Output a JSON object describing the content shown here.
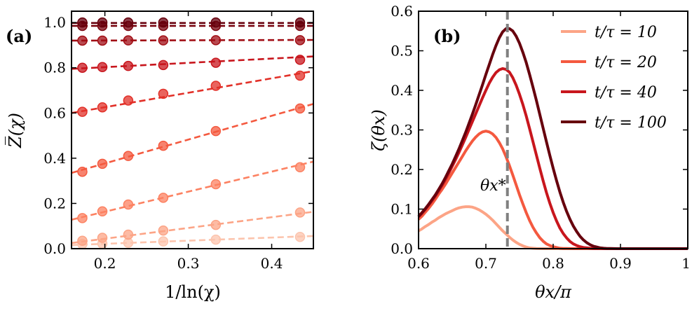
{
  "chart_data": [
    {
      "type": "scatter",
      "panel_label": "(a)",
      "xlabel": "1/ln(χ)",
      "ylabel": "Z̅(χ)",
      "xlim": [
        0.16,
        0.45
      ],
      "ylim": [
        0.0,
        1.05
      ],
      "xticks": [
        0.2,
        0.3,
        0.4
      ],
      "xtick_labels": [
        "0.2",
        "0.3",
        "0.4"
      ],
      "yticks": [
        0.0,
        0.2,
        0.4,
        0.6,
        0.8,
        1.0
      ],
      "ytick_labels": [
        "0.0",
        "0.2",
        "0.4",
        "0.6",
        "0.8",
        "1.0"
      ],
      "x": [
        0.173,
        0.197,
        0.228,
        0.27,
        0.333,
        0.434
      ],
      "series": [
        {
          "color": "#fcc4ad",
          "values": [
            0.02,
            0.022,
            0.026,
            0.032,
            0.04,
            0.052
          ],
          "fit": [
            0.016,
            0.056
          ]
        },
        {
          "color": "#fca486",
          "values": [
            0.035,
            0.048,
            0.062,
            0.08,
            0.105,
            0.16
          ],
          "fit": [
            0.025,
            0.163
          ]
        },
        {
          "color": "#fc8161",
          "values": [
            0.135,
            0.165,
            0.195,
            0.225,
            0.285,
            0.36
          ],
          "fit": [
            0.128,
            0.385
          ]
        },
        {
          "color": "#f4593f",
          "values": [
            0.34,
            0.375,
            0.41,
            0.455,
            0.52,
            0.62
          ],
          "fit": [
            0.335,
            0.64
          ]
        },
        {
          "color": "#e23028",
          "values": [
            0.605,
            0.625,
            0.655,
            0.685,
            0.72,
            0.765
          ],
          "fit": [
            0.6,
            0.785
          ]
        },
        {
          "color": "#c8161d",
          "values": [
            0.8,
            0.803,
            0.808,
            0.812,
            0.822,
            0.835
          ],
          "fit": [
            0.795,
            0.85
          ]
        },
        {
          "color": "#a10e15",
          "values": [
            0.92,
            0.92,
            0.921,
            0.921,
            0.922,
            0.922
          ],
          "fit": [
            0.92,
            0.923
          ]
        },
        {
          "color": "#79040f",
          "values": [
            0.985,
            0.985,
            0.985,
            0.985,
            0.985,
            0.985
          ],
          "fit": [
            0.985,
            0.985
          ]
        },
        {
          "color": "#67000d",
          "values": [
            1.0,
            1.0,
            1.0,
            1.0,
            1.0,
            1.0
          ],
          "fit": [
            0.998,
            0.998
          ]
        }
      ]
    },
    {
      "type": "line",
      "panel_label": "(b)",
      "xlabel": "θx/π",
      "ylabel": "ζ(θx)",
      "xlim": [
        0.6,
        1.0
      ],
      "ylim": [
        0.0,
        0.6
      ],
      "xticks": [
        0.6,
        0.7,
        0.8,
        0.9,
        1.0
      ],
      "xtick_labels": [
        "0.6",
        "0.7",
        "0.8",
        "0.9",
        "1"
      ],
      "yticks": [
        0.0,
        0.1,
        0.2,
        0.3,
        0.4,
        0.5,
        0.6
      ],
      "ytick_labels": [
        "0.0",
        "0.1",
        "0.2",
        "0.3",
        "0.4",
        "0.5",
        "0.6"
      ],
      "vline": 0.732,
      "annotation": "θx*",
      "x": [
        0.6,
        0.605,
        0.61,
        0.615,
        0.62,
        0.625,
        0.63,
        0.635,
        0.64,
        0.645,
        0.65,
        0.655,
        0.66,
        0.665,
        0.67,
        0.675,
        0.68,
        0.685,
        0.69,
        0.695,
        0.7,
        0.705,
        0.71,
        0.715,
        0.72,
        0.725,
        0.73,
        0.735,
        0.74,
        0.745,
        0.75,
        0.755,
        0.76,
        0.765,
        0.77,
        0.775,
        0.78,
        0.785,
        0.79,
        0.795,
        0.8,
        0.805,
        0.81,
        0.815,
        0.82,
        0.825,
        0.83,
        0.835,
        0.84,
        0.845,
        0.85,
        0.855,
        0.86,
        0.865,
        0.87,
        0.875,
        0.88,
        0.885,
        0.89,
        0.895,
        0.9,
        0.905,
        0.91,
        0.915,
        0.92,
        0.925,
        0.93,
        0.935,
        0.94,
        0.945,
        0.95,
        0.955,
        0.96,
        0.965,
        0.97,
        0.975,
        0.98,
        0.985,
        0.99,
        0.995,
        1.0
      ],
      "series": [
        {
          "name": "t/τ = 10",
          "color": "#fca486",
          "values": [
            0.045,
            0.05,
            0.056,
            0.061,
            0.067,
            0.072,
            0.078,
            0.083,
            0.088,
            0.092,
            0.096,
            0.1,
            0.103,
            0.105,
            0.106,
            0.106,
            0.105,
            0.102,
            0.098,
            0.093,
            0.087,
            0.08,
            0.072,
            0.063,
            0.054,
            0.045,
            0.037,
            0.029,
            0.022,
            0.016,
            0.011,
            0.007,
            0.004,
            0.002,
            0.001,
            0.0003,
            0.0001,
            0.0,
            0.0,
            0.0,
            0.0,
            0.0,
            0.0,
            0.0,
            0.0,
            0.0,
            0.0,
            0.0,
            0.0,
            0.0,
            0.0,
            0.0,
            0.0,
            0.0,
            0.0,
            0.0,
            0.0,
            0.0,
            0.0,
            0.0,
            0.0,
            0.0,
            0.0,
            0.0,
            0.0,
            0.0,
            0.0,
            0.0,
            0.0,
            0.0,
            0.0,
            0.0,
            0.0,
            0.0,
            0.0,
            0.0,
            0.0,
            0.0,
            0.0,
            0.0,
            0.0
          ]
        },
        {
          "name": "t/τ = 20",
          "color": "#f4593f",
          "values": [
            0.074,
            0.082,
            0.092,
            0.102,
            0.113,
            0.125,
            0.138,
            0.15,
            0.163,
            0.177,
            0.191,
            0.205,
            0.219,
            0.233,
            0.247,
            0.26,
            0.272,
            0.282,
            0.29,
            0.295,
            0.297,
            0.295,
            0.29,
            0.281,
            0.268,
            0.252,
            0.232,
            0.21,
            0.186,
            0.161,
            0.136,
            0.113,
            0.091,
            0.071,
            0.054,
            0.04,
            0.028,
            0.019,
            0.012,
            0.008,
            0.005,
            0.003,
            0.001,
            0.0006,
            0.0003,
            0.0001,
            0.0,
            0.0,
            0.0,
            0.0,
            0.0,
            0.0,
            0.0,
            0.0,
            0.0,
            0.0,
            0.0,
            0.0,
            0.0,
            0.0,
            0.0,
            0.0,
            0.0,
            0.0,
            0.0,
            0.0,
            0.0,
            0.0,
            0.0,
            0.0,
            0.0,
            0.0,
            0.0,
            0.0,
            0.0,
            0.0,
            0.0,
            0.0,
            0.0,
            0.0,
            0.0
          ]
        },
        {
          "name": "t/τ = 40",
          "color": "#c8161d",
          "values": [
            0.08,
            0.089,
            0.099,
            0.11,
            0.121,
            0.133,
            0.146,
            0.16,
            0.175,
            0.191,
            0.208,
            0.225,
            0.243,
            0.262,
            0.281,
            0.301,
            0.321,
            0.341,
            0.361,
            0.381,
            0.4,
            0.418,
            0.433,
            0.445,
            0.452,
            0.455,
            0.453,
            0.446,
            0.432,
            0.413,
            0.39,
            0.364,
            0.335,
            0.303,
            0.27,
            0.237,
            0.204,
            0.172,
            0.142,
            0.115,
            0.091,
            0.07,
            0.052,
            0.038,
            0.027,
            0.018,
            0.012,
            0.008,
            0.005,
            0.003,
            0.002,
            0.001,
            0.0005,
            0.0002,
            0.0001,
            0.0,
            0.0,
            0.0,
            0.0,
            0.0,
            0.0,
            0.0,
            0.0,
            0.0,
            0.0,
            0.0,
            0.0,
            0.0,
            0.0,
            0.0,
            0.0,
            0.0,
            0.0,
            0.0,
            0.0,
            0.0,
            0.0,
            0.0,
            0.0,
            0.0,
            0.0
          ]
        },
        {
          "name": "t/τ = 100",
          "color": "#67000d",
          "values": [
            0.082,
            0.091,
            0.101,
            0.112,
            0.124,
            0.136,
            0.15,
            0.164,
            0.18,
            0.197,
            0.214,
            0.233,
            0.252,
            0.273,
            0.294,
            0.317,
            0.34,
            0.364,
            0.389,
            0.414,
            0.44,
            0.465,
            0.49,
            0.513,
            0.533,
            0.548,
            0.556,
            0.556,
            0.55,
            0.537,
            0.519,
            0.496,
            0.47,
            0.44,
            0.408,
            0.375,
            0.34,
            0.305,
            0.27,
            0.236,
            0.203,
            0.172,
            0.143,
            0.117,
            0.094,
            0.074,
            0.057,
            0.043,
            0.031,
            0.022,
            0.015,
            0.01,
            0.006,
            0.004,
            0.002,
            0.001,
            0.0006,
            0.0003,
            0.0001,
            0.0,
            0.0,
            0.0,
            0.0,
            0.0,
            0.0,
            0.0,
            0.0,
            0.0,
            0.0,
            0.0,
            0.0,
            0.0,
            0.0,
            0.0,
            0.0,
            0.0,
            0.0,
            0.0,
            0.0,
            0.0,
            0.0
          ]
        }
      ],
      "legend": [
        "t/τ = 10",
        "t/τ = 20",
        "t/τ = 40",
        "t/τ = 100"
      ],
      "legend_position": "top-right"
    }
  ]
}
